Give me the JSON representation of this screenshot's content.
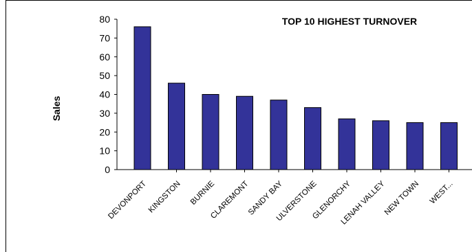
{
  "chart_data": {
    "type": "bar",
    "title": "TOP 10 HIGHEST TURNOVER",
    "xlabel": "",
    "ylabel": "Sales",
    "categories": [
      "DEVONPORT",
      "KINGSTON",
      "BURNIE",
      "CLAREMONT",
      "SANDY BAY",
      "ULVERSTONE",
      "GLENORCHY",
      "LENAH VALLEY",
      "NEW TOWN",
      "WEST..."
    ],
    "values": [
      76,
      46,
      40,
      39,
      37,
      33,
      27,
      26,
      25,
      25
    ],
    "ylim": [
      0,
      80
    ],
    "yticks": [
      0,
      10,
      20,
      30,
      40,
      50,
      60,
      70,
      80
    ],
    "grid": false,
    "legend": "none",
    "colors": {
      "bar_fill": "#333399",
      "bar_stroke": "#000000"
    }
  }
}
